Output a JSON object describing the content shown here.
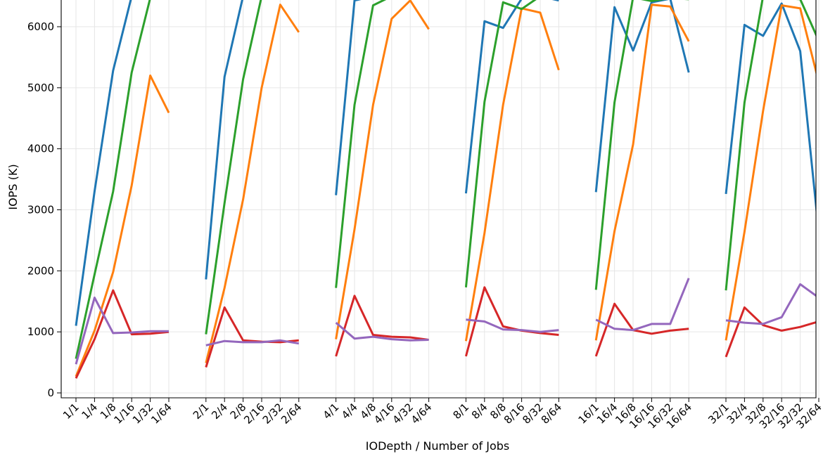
{
  "chart_data": {
    "type": "line",
    "title": "",
    "xlabel": "IODepth / Number of Jobs",
    "ylabel": "IOPS (K)",
    "ylim": [
      -60,
      6500
    ],
    "yticks": [
      0,
      1000,
      2000,
      3000,
      4000,
      5000,
      6000
    ],
    "grid": true,
    "legend": "none",
    "groups": [
      {
        "categories": [
          "1/1",
          "1/4",
          "1/8",
          "1/16",
          "1/32",
          "1/64"
        ]
      },
      {
        "categories": [
          "2/1",
          "2/4",
          "2/8",
          "2/16",
          "2/32",
          "2/64"
        ]
      },
      {
        "categories": [
          "4/1",
          "4/4",
          "4/8",
          "4/16",
          "4/32",
          "4/64"
        ]
      },
      {
        "categories": [
          "8/1",
          "8/4",
          "8/8",
          "8/16",
          "8/32",
          "8/64"
        ]
      },
      {
        "categories": [
          "16/1",
          "16/4",
          "16/8",
          "16/16",
          "16/32",
          "16/64"
        ]
      },
      {
        "categories": [
          "32/1",
          "32/4",
          "32/8",
          "32/16",
          "32/32",
          "32/64"
        ]
      }
    ],
    "series": [
      {
        "color": "#1f77b4",
        "values": [
          [
            1100,
            3300,
            5280,
            6500,
            6500,
            6500
          ],
          [
            1860,
            5180,
            6500,
            6500,
            6500,
            6500
          ],
          [
            3240,
            6430,
            6500,
            6500,
            6500,
            6500
          ],
          [
            3270,
            6090,
            5980,
            6460,
            6500,
            6430
          ],
          [
            3290,
            6320,
            5610,
            6400,
            6460,
            5250
          ],
          [
            3260,
            6030,
            5850,
            6380,
            5600,
            2630
          ]
        ]
      },
      {
        "color": "#ff7f0e",
        "values": [
          [
            270,
            1020,
            1980,
            3400,
            5200,
            4590
          ],
          [
            490,
            1720,
            3170,
            5000,
            6360,
            5910
          ],
          [
            880,
            2680,
            4720,
            6130,
            6430,
            5960
          ],
          [
            850,
            2620,
            4720,
            6300,
            6230,
            5290
          ],
          [
            860,
            2650,
            4070,
            6360,
            6330,
            5760
          ],
          [
            860,
            2640,
            4620,
            6350,
            6300,
            5090
          ]
        ]
      },
      {
        "color": "#2ca02c",
        "values": [
          [
            560,
            1940,
            3300,
            5250,
            6470,
            6500
          ],
          [
            960,
            3110,
            5140,
            6500,
            6500,
            6500
          ],
          [
            1720,
            4720,
            6350,
            6500,
            6500,
            6500
          ],
          [
            1730,
            4770,
            6400,
            6290,
            6500,
            6500
          ],
          [
            1690,
            4760,
            6480,
            6420,
            6470,
            6450
          ],
          [
            1680,
            4760,
            6500,
            6470,
            6450,
            5770
          ]
        ]
      },
      {
        "color": "#d62728",
        "values": [
          [
            240,
            880,
            1680,
            960,
            970,
            1000
          ],
          [
            420,
            1400,
            860,
            840,
            830,
            860
          ],
          [
            600,
            1590,
            950,
            920,
            910,
            870
          ],
          [
            600,
            1730,
            1090,
            1020,
            980,
            950
          ],
          [
            600,
            1460,
            1030,
            970,
            1020,
            1050
          ],
          [
            590,
            1400,
            1110,
            1020,
            1080,
            1170
          ]
        ]
      },
      {
        "color": "#9467bd",
        "values": [
          [
            470,
            1560,
            980,
            990,
            1010,
            1010
          ],
          [
            780,
            850,
            830,
            830,
            860,
            810
          ],
          [
            1150,
            890,
            920,
            880,
            860,
            870
          ],
          [
            1200,
            1170,
            1040,
            1030,
            1000,
            1030
          ],
          [
            1200,
            1050,
            1030,
            1130,
            1130,
            1880
          ],
          [
            1190,
            1150,
            1130,
            1240,
            1780,
            1560
          ]
        ]
      }
    ]
  }
}
